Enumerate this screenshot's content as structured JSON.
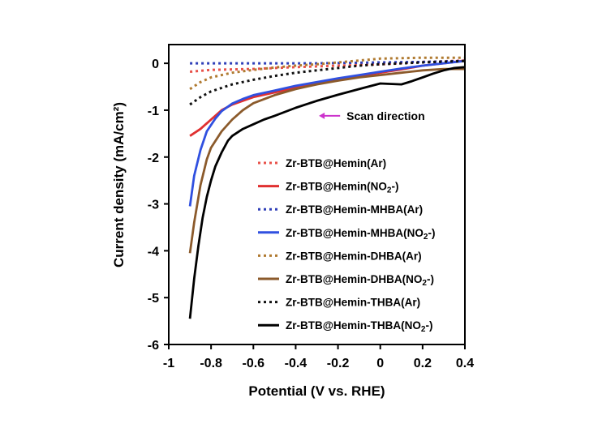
{
  "chart_data": {
    "type": "line",
    "title": "",
    "xlabel": "Potential (V vs. RHE)",
    "ylabel": "Current density (mA/cm²)",
    "xlim": [
      -1,
      0.4
    ],
    "ylim": [
      -6,
      0.4
    ],
    "xticks": [
      -1,
      -0.8,
      -0.6,
      -0.4,
      -0.2,
      0,
      0.2,
      0.4
    ],
    "xtick_labels": [
      "-1",
      "-0.8",
      "-0.6",
      "-0.4",
      "-0.2",
      "0",
      "0.2",
      "0.4"
    ],
    "yticks": [
      0,
      -1,
      -2,
      -3,
      -4,
      -5,
      -6
    ],
    "ytick_labels": [
      "0",
      "-1",
      "-2",
      "-3",
      "-4",
      "-5",
      "-6"
    ],
    "grid": false,
    "legend_position": "center-right",
    "annotation": {
      "text": "Scan direction",
      "arrow_color": "#cc33cc",
      "arrow_from_x": -0.19,
      "arrow_to_x": -0.29,
      "y": -1.12
    },
    "series": [
      {
        "name": "Zr-BTB@Hemin(Ar)",
        "name_parts": [
          "Zr-BTB@Hemin(Ar)",
          "",
          ""
        ],
        "color": "#e8524a",
        "dashed": true,
        "x": [
          -0.9,
          -0.8,
          -0.6,
          -0.4,
          -0.2,
          0,
          0.2,
          0.4
        ],
        "y": [
          -0.18,
          -0.14,
          -0.12,
          -0.08,
          -0.05,
          -0.02,
          0.03,
          0.06
        ]
      },
      {
        "name": "Zr-BTB@Hemin(NO2-)",
        "name_parts": [
          "Zr-BTB@Hemin(NO",
          "2",
          "-)"
        ],
        "color": "#e03030",
        "dashed": false,
        "x": [
          -0.9,
          -0.85,
          -0.8,
          -0.75,
          -0.7,
          -0.6,
          -0.5,
          -0.4,
          -0.3,
          -0.2,
          -0.1,
          0,
          0.1,
          0.2,
          0.3,
          0.4
        ],
        "y": [
          -1.55,
          -1.4,
          -1.2,
          -1.0,
          -0.88,
          -0.72,
          -0.62,
          -0.52,
          -0.43,
          -0.35,
          -0.27,
          -0.2,
          -0.13,
          -0.05,
          0.0,
          0.06
        ]
      },
      {
        "name": "Zr-BTB@Hemin-MHBA(Ar)",
        "name_parts": [
          "Zr-BTB@Hemin-MHBA(Ar)",
          "",
          ""
        ],
        "color": "#2f3fb8",
        "dashed": true,
        "x": [
          -0.9,
          -0.6,
          -0.3,
          0,
          0.2,
          0.4
        ],
        "y": [
          0.0,
          0.0,
          0.0,
          0.02,
          0.03,
          0.05
        ]
      },
      {
        "name": "Zr-BTB@Hemin-MHBA(NO2-)",
        "name_parts": [
          "Zr-BTB@Hemin-MHBA(NO",
          "2",
          "-)"
        ],
        "color": "#3050e0",
        "dashed": false,
        "x": [
          -0.9,
          -0.88,
          -0.85,
          -0.82,
          -0.78,
          -0.75,
          -0.7,
          -0.65,
          -0.6,
          -0.5,
          -0.4,
          -0.3,
          -0.2,
          -0.1,
          0,
          0.1,
          0.2,
          0.3,
          0.4
        ],
        "y": [
          -3.05,
          -2.4,
          -1.85,
          -1.45,
          -1.18,
          -1.02,
          -0.86,
          -0.76,
          -0.68,
          -0.58,
          -0.48,
          -0.4,
          -0.32,
          -0.25,
          -0.18,
          -0.11,
          -0.05,
          0.0,
          0.05
        ]
      },
      {
        "name": "Zr-BTB@Hemin-DHBA(Ar)",
        "name_parts": [
          "Zr-BTB@Hemin-DHBA(Ar)",
          "",
          ""
        ],
        "color": "#b07a30",
        "dashed": true,
        "x": [
          -0.9,
          -0.85,
          -0.8,
          -0.7,
          -0.6,
          -0.5,
          -0.4,
          -0.3,
          -0.2,
          -0.1,
          0,
          0.2,
          0.4
        ],
        "y": [
          -0.55,
          -0.4,
          -0.3,
          -0.2,
          -0.14,
          -0.09,
          -0.05,
          -0.02,
          0.02,
          0.06,
          0.1,
          0.12,
          0.12
        ]
      },
      {
        "name": "Zr-BTB@Hemin-DHBA(NO2-)",
        "name_parts": [
          "Zr-BTB@Hemin-DHBA(NO",
          "2",
          "-)"
        ],
        "color": "#8b5a2b",
        "dashed": false,
        "x": [
          -0.9,
          -0.88,
          -0.85,
          -0.82,
          -0.8,
          -0.75,
          -0.7,
          -0.65,
          -0.6,
          -0.5,
          -0.4,
          -0.3,
          -0.2,
          -0.1,
          0,
          0.1,
          0.2,
          0.3,
          0.4
        ],
        "y": [
          -4.05,
          -3.4,
          -2.6,
          -2.05,
          -1.8,
          -1.45,
          -1.2,
          -1.0,
          -0.85,
          -0.68,
          -0.55,
          -0.45,
          -0.37,
          -0.3,
          -0.25,
          -0.2,
          -0.15,
          -0.12,
          -0.12
        ]
      },
      {
        "name": "Zr-BTB@Hemin-THBA(Ar)",
        "name_parts": [
          "Zr-BTB@Hemin-THBA(Ar)",
          "",
          ""
        ],
        "color": "#111111",
        "dashed": true,
        "x": [
          -0.9,
          -0.85,
          -0.8,
          -0.7,
          -0.6,
          -0.5,
          -0.4,
          -0.3,
          -0.2,
          -0.1,
          0,
          0.2,
          0.4
        ],
        "y": [
          -0.88,
          -0.72,
          -0.6,
          -0.45,
          -0.35,
          -0.27,
          -0.2,
          -0.15,
          -0.1,
          -0.05,
          -0.02,
          0.02,
          0.05
        ]
      },
      {
        "name": "Zr-BTB@Hemin-THBA(NO2-)",
        "name_parts": [
          "Zr-BTB@Hemin-THBA(NO",
          "2",
          "-)"
        ],
        "color": "#000000",
        "dashed": false,
        "x": [
          -0.9,
          -0.88,
          -0.86,
          -0.84,
          -0.82,
          -0.8,
          -0.78,
          -0.75,
          -0.72,
          -0.7,
          -0.65,
          -0.6,
          -0.55,
          -0.5,
          -0.4,
          -0.3,
          -0.2,
          -0.1,
          0,
          0.1,
          0.15,
          0.2,
          0.25,
          0.3,
          0.35,
          0.4
        ],
        "y": [
          -5.45,
          -4.6,
          -3.9,
          -3.3,
          -2.85,
          -2.5,
          -2.2,
          -1.9,
          -1.65,
          -1.55,
          -1.4,
          -1.3,
          -1.2,
          -1.12,
          -0.95,
          -0.8,
          -0.67,
          -0.55,
          -0.43,
          -0.45,
          -0.38,
          -0.3,
          -0.22,
          -0.15,
          -0.1,
          -0.08
        ]
      }
    ]
  }
}
